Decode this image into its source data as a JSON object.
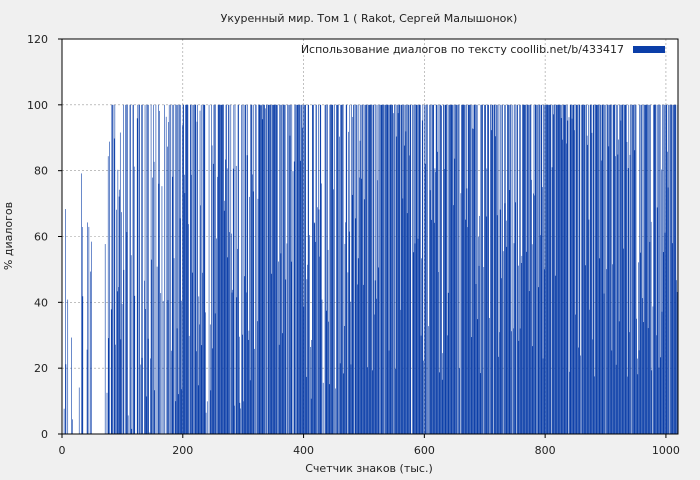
{
  "chart_data": {
    "type": "bar",
    "title": "Укуренный мир. Том 1 ( Rakot, Сергей Малышонок)",
    "xlabel": "Счетчик знаков (тыс.)",
    "ylabel": "% диалогов",
    "xlim": [
      0,
      1020
    ],
    "ylim": [
      0,
      120
    ],
    "x_ticks": [
      "0",
      "200",
      "400",
      "600",
      "800",
      "1000"
    ],
    "y_ticks": [
      "0",
      "20",
      "40",
      "60",
      "80",
      "100",
      "120"
    ],
    "x_tick_values": [
      0,
      200,
      400,
      600,
      800,
      1000
    ],
    "y_tick_values": [
      0,
      20,
      40,
      60,
      80,
      100,
      120
    ],
    "grid": true,
    "legend_position": "top-right",
    "series": [
      {
        "name": "Использование диалогов по тексту  coollib.net/b/433417",
        "color": "#0b3ea8",
        "density_profile": {
          "x": [
            0,
            5,
            10,
            25,
            30,
            45,
            50,
            70,
            75,
            100,
            150,
            200,
            250,
            300,
            400,
            500,
            600,
            700,
            800,
            900,
            1000,
            1020
          ],
          "mean_percent": [
            5,
            30,
            8,
            0,
            30,
            45,
            0,
            0,
            40,
            45,
            45,
            55,
            60,
            62,
            65,
            67,
            70,
            72,
            72,
            70,
            70,
            70
          ],
          "fill_fraction": [
            0.3,
            0.6,
            0.2,
            0,
            0.3,
            0.5,
            0,
            0,
            0.7,
            0.75,
            0.8,
            0.85,
            0.9,
            0.92,
            0.93,
            0.94,
            0.95,
            0.96,
            0.96,
            0.96,
            0.96,
            0.96
          ]
        }
      }
    ]
  }
}
